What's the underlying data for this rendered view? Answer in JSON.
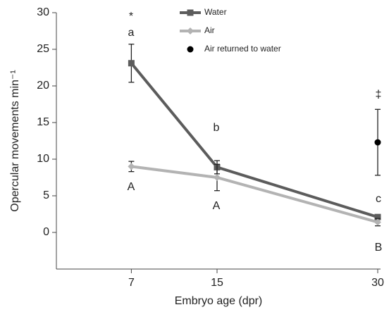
{
  "chart_data": {
    "type": "line",
    "x_label": "Embryo age (dpr)",
    "y_label": "Opercular movements min⁻¹",
    "xlim": [
      0,
      30
    ],
    "xticks": [
      7,
      15,
      30
    ],
    "ylim": [
      -5,
      30
    ],
    "yticks": [
      0,
      5,
      10,
      15,
      20,
      25,
      30
    ],
    "legend": "top",
    "series": [
      {
        "name": "Water",
        "color": "#5c5c5c",
        "marker": "square",
        "x": [
          7,
          15,
          30
        ],
        "values": [
          23.1,
          8.9,
          2.1
        ],
        "errors": [
          2.6,
          0.9,
          0.3
        ]
      },
      {
        "name": "Air",
        "color": "#b3b3b3",
        "marker": "diamond",
        "x": [
          7,
          15,
          30
        ],
        "values": [
          9.0,
          7.5,
          1.4
        ],
        "errors": [
          0.7,
          1.8,
          0.5
        ]
      },
      {
        "name": "Air returned to water",
        "color": "#000000",
        "marker": "circle",
        "x": [
          30
        ],
        "values": [
          12.3
        ],
        "errors": [
          4.5
        ]
      }
    ],
    "annotations": [
      "*",
      "a",
      "b",
      "A",
      "A",
      "‡",
      "c",
      "B"
    ]
  }
}
